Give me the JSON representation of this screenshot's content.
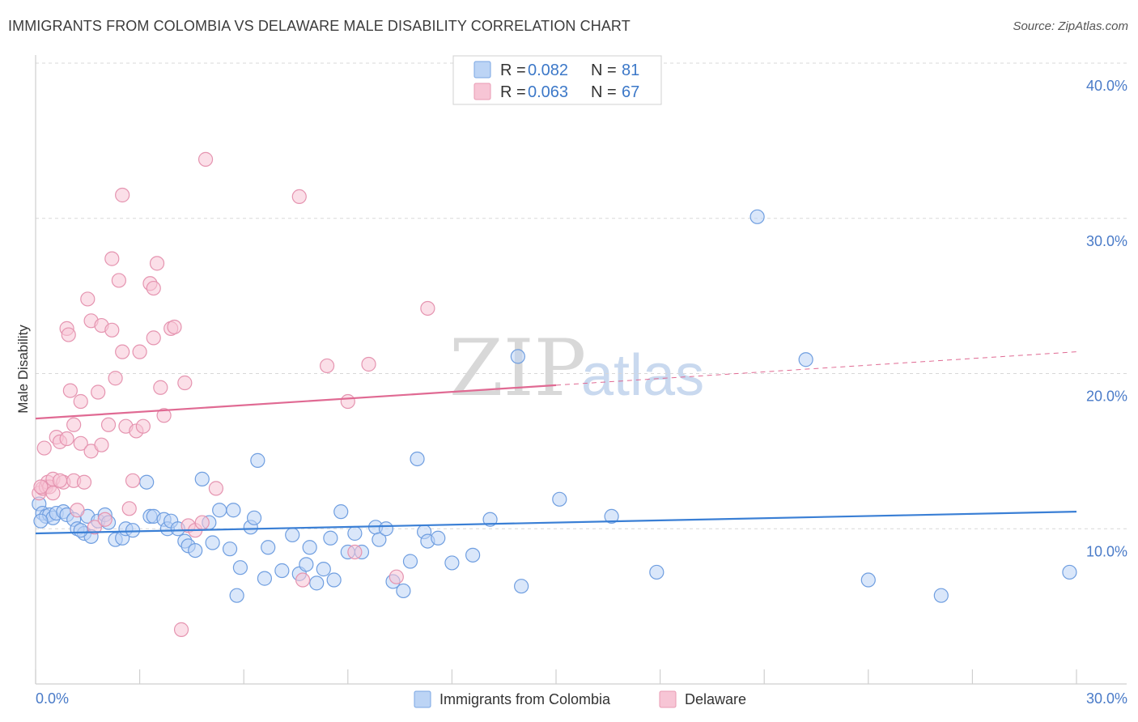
{
  "title": "IMMIGRANTS FROM COLOMBIA VS DELAWARE MALE DISABILITY CORRELATION CHART",
  "source": "Source: ZipAtlas.com",
  "watermark": {
    "zip": "ZIP",
    "atlas": "atlas"
  },
  "colors": {
    "blue": "#3a7fd5",
    "blue_fill": "#bcd4f5",
    "pink": "#e06a93",
    "pink_fill": "#f7c5d5",
    "grid": "#d8d8d8",
    "tick_text": "#4a7bc8"
  },
  "legend": {
    "rows": [
      {
        "r_label": "R = ",
        "r_value": "0.082",
        "n_label": "N = ",
        "n_value": "81",
        "series": "blue"
      },
      {
        "r_label": "R = ",
        "r_value": "0.063",
        "n_label": "N = ",
        "n_value": "67",
        "series": "pink"
      }
    ]
  },
  "chart_data": {
    "type": "scatter",
    "ylabel": "Male Disability",
    "xlim": [
      0,
      30
    ],
    "ylim": [
      0,
      40
    ],
    "x_ticks": [
      "0.0%",
      "30.0%"
    ],
    "y_ticks": [
      {
        "value": 10,
        "label": "10.0%"
      },
      {
        "value": 20,
        "label": "20.0%"
      },
      {
        "value": 30,
        "label": "30.0%"
      },
      {
        "value": 40,
        "label": "40.0%"
      }
    ],
    "grid": true,
    "legend_position": "top-center",
    "series": [
      {
        "name": "Immigrants from Colombia",
        "color": "blue",
        "trend": {
          "x0": 0,
          "y0": 9.7,
          "x1": 30,
          "y1": 11.1,
          "dashed_from": null
        },
        "points": [
          [
            0.1,
            11.6
          ],
          [
            0.2,
            11.0
          ],
          [
            0.3,
            10.8
          ],
          [
            0.4,
            10.9
          ],
          [
            0.5,
            10.7
          ],
          [
            0.6,
            11.0
          ],
          [
            0.8,
            11.1
          ],
          [
            0.9,
            10.9
          ],
          [
            1.1,
            10.6
          ],
          [
            1.2,
            10.0
          ],
          [
            1.4,
            9.7
          ],
          [
            1.5,
            10.8
          ],
          [
            1.6,
            9.5
          ],
          [
            1.8,
            10.5
          ],
          [
            2.0,
            10.9
          ],
          [
            2.1,
            10.4
          ],
          [
            2.3,
            9.3
          ],
          [
            2.5,
            9.4
          ],
          [
            2.6,
            10.0
          ],
          [
            2.8,
            9.9
          ],
          [
            3.2,
            13.0
          ],
          [
            3.3,
            10.8
          ],
          [
            3.4,
            10.8
          ],
          [
            3.7,
            10.6
          ],
          [
            3.8,
            10.0
          ],
          [
            3.9,
            10.5
          ],
          [
            4.1,
            10.0
          ],
          [
            4.3,
            9.2
          ],
          [
            4.4,
            8.9
          ],
          [
            4.6,
            8.6
          ],
          [
            4.8,
            13.2
          ],
          [
            5.0,
            10.4
          ],
          [
            5.1,
            9.1
          ],
          [
            5.3,
            11.2
          ],
          [
            5.6,
            8.7
          ],
          [
            5.7,
            11.2
          ],
          [
            5.8,
            5.7
          ],
          [
            5.9,
            7.5
          ],
          [
            6.2,
            10.1
          ],
          [
            6.3,
            10.7
          ],
          [
            6.4,
            14.4
          ],
          [
            6.6,
            6.8
          ],
          [
            6.7,
            8.8
          ],
          [
            7.1,
            7.3
          ],
          [
            7.4,
            9.6
          ],
          [
            7.6,
            7.1
          ],
          [
            7.8,
            7.7
          ],
          [
            7.9,
            8.8
          ],
          [
            8.1,
            6.5
          ],
          [
            8.3,
            7.4
          ],
          [
            8.5,
            9.4
          ],
          [
            8.6,
            6.7
          ],
          [
            8.8,
            11.1
          ],
          [
            9.0,
            8.5
          ],
          [
            9.2,
            9.7
          ],
          [
            9.4,
            8.5
          ],
          [
            9.8,
            10.1
          ],
          [
            9.9,
            9.3
          ],
          [
            10.1,
            10.0
          ],
          [
            10.3,
            6.6
          ],
          [
            10.6,
            6.0
          ],
          [
            10.8,
            7.9
          ],
          [
            11.0,
            14.5
          ],
          [
            11.2,
            9.8
          ],
          [
            11.3,
            9.2
          ],
          [
            11.6,
            9.4
          ],
          [
            12.0,
            7.8
          ],
          [
            12.6,
            8.3
          ],
          [
            13.1,
            10.6
          ],
          [
            13.9,
            21.1
          ],
          [
            14.0,
            6.3
          ],
          [
            15.1,
            11.9
          ],
          [
            16.6,
            10.8
          ],
          [
            17.9,
            7.2
          ],
          [
            20.8,
            30.1
          ],
          [
            22.2,
            20.9
          ],
          [
            24.0,
            6.7
          ],
          [
            26.1,
            5.7
          ],
          [
            29.8,
            7.2
          ],
          [
            0.15,
            10.5
          ],
          [
            1.3,
            9.9
          ]
        ]
      },
      {
        "name": "Delaware",
        "color": "pink",
        "trend": {
          "x0": 0,
          "y0": 17.1,
          "x1": 30,
          "y1": 21.4,
          "dashed_from": 15
        },
        "points": [
          [
            0.1,
            12.3
          ],
          [
            0.2,
            12.6
          ],
          [
            0.25,
            15.2
          ],
          [
            0.3,
            12.7
          ],
          [
            0.35,
            13.0
          ],
          [
            0.4,
            12.7
          ],
          [
            0.5,
            13.2
          ],
          [
            0.5,
            12.3
          ],
          [
            0.6,
            15.9
          ],
          [
            0.7,
            15.6
          ],
          [
            0.8,
            13.0
          ],
          [
            0.9,
            15.8
          ],
          [
            0.9,
            22.9
          ],
          [
            0.95,
            22.5
          ],
          [
            1.0,
            18.9
          ],
          [
            1.1,
            16.7
          ],
          [
            1.1,
            13.1
          ],
          [
            1.2,
            11.2
          ],
          [
            1.3,
            18.2
          ],
          [
            1.3,
            15.5
          ],
          [
            1.4,
            13.0
          ],
          [
            1.5,
            24.8
          ],
          [
            1.6,
            23.4
          ],
          [
            1.6,
            15.0
          ],
          [
            1.7,
            10.1
          ],
          [
            1.8,
            18.8
          ],
          [
            1.9,
            15.4
          ],
          [
            1.9,
            23.1
          ],
          [
            2.1,
            16.7
          ],
          [
            2.2,
            27.4
          ],
          [
            2.2,
            22.8
          ],
          [
            2.3,
            19.7
          ],
          [
            2.4,
            26.0
          ],
          [
            2.5,
            31.5
          ],
          [
            2.5,
            21.4
          ],
          [
            2.6,
            16.6
          ],
          [
            2.7,
            11.3
          ],
          [
            2.8,
            13.1
          ],
          [
            2.9,
            16.3
          ],
          [
            3.0,
            21.4
          ],
          [
            3.1,
            16.6
          ],
          [
            3.3,
            25.8
          ],
          [
            3.4,
            25.5
          ],
          [
            3.4,
            22.3
          ],
          [
            3.5,
            27.1
          ],
          [
            3.6,
            19.1
          ],
          [
            3.7,
            17.3
          ],
          [
            3.9,
            22.9
          ],
          [
            4.0,
            23.0
          ],
          [
            4.2,
            3.5
          ],
          [
            4.3,
            19.4
          ],
          [
            4.4,
            10.2
          ],
          [
            4.6,
            9.9
          ],
          [
            4.8,
            10.4
          ],
          [
            4.9,
            33.8
          ],
          [
            5.2,
            12.6
          ],
          [
            7.6,
            31.4
          ],
          [
            7.7,
            6.7
          ],
          [
            8.4,
            20.5
          ],
          [
            9.0,
            18.2
          ],
          [
            9.2,
            8.5
          ],
          [
            9.6,
            20.6
          ],
          [
            10.4,
            6.9
          ],
          [
            11.3,
            24.2
          ],
          [
            0.15,
            12.7
          ],
          [
            0.7,
            13.1
          ],
          [
            2.0,
            10.6
          ]
        ]
      }
    ]
  }
}
